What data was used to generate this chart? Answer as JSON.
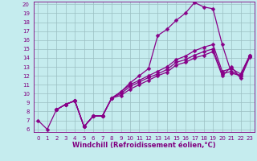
{
  "xlabel": "Windchill (Refroidissement éolien,°C)",
  "xlim": [
    -0.5,
    23.5
  ],
  "ylim": [
    5.7,
    20.3
  ],
  "xticks": [
    0,
    1,
    2,
    3,
    4,
    5,
    6,
    7,
    8,
    9,
    10,
    11,
    12,
    13,
    14,
    15,
    16,
    17,
    18,
    19,
    20,
    21,
    22,
    23
  ],
  "yticks": [
    6,
    7,
    8,
    9,
    10,
    11,
    12,
    13,
    14,
    15,
    16,
    17,
    18,
    19,
    20
  ],
  "bg_color": "#c5ecee",
  "grid_color": "#9bbfc2",
  "line_color": "#880088",
  "markersize": 2.5,
  "linewidth": 0.9,
  "line1_x": [
    0,
    1,
    2,
    3,
    4,
    5,
    6,
    7,
    8,
    9,
    10,
    11,
    12,
    13,
    14,
    15,
    16,
    17,
    18,
    19,
    20,
    21,
    22,
    23
  ],
  "line1_y": [
    7.0,
    6.0,
    8.2,
    8.8,
    9.2,
    6.3,
    7.5,
    7.5,
    9.5,
    10.2,
    11.2,
    12.0,
    12.8,
    16.5,
    17.2,
    18.2,
    19.0,
    20.2,
    19.7,
    19.5,
    15.5,
    12.3,
    12.0,
    14.3
  ],
  "line2_x": [
    2,
    3,
    4,
    5,
    6,
    7,
    8,
    9,
    10,
    11,
    12,
    13,
    14,
    15,
    16,
    17,
    18,
    19,
    20,
    21,
    22,
    23
  ],
  "line2_y": [
    8.2,
    8.8,
    9.2,
    6.3,
    7.5,
    7.5,
    9.5,
    10.2,
    11.0,
    11.5,
    12.0,
    12.5,
    13.0,
    13.8,
    14.2,
    14.8,
    15.2,
    15.5,
    12.5,
    12.8,
    12.2,
    14.3
  ],
  "line3_x": [
    2,
    3,
    4,
    5,
    6,
    7,
    8,
    9,
    10,
    11,
    12,
    13,
    14,
    15,
    16,
    17,
    18,
    19,
    20,
    21,
    22,
    23
  ],
  "line3_y": [
    8.2,
    8.8,
    9.2,
    6.3,
    7.5,
    7.5,
    9.5,
    10.0,
    10.8,
    11.3,
    11.8,
    12.2,
    12.7,
    13.5,
    13.8,
    14.3,
    14.7,
    15.0,
    12.2,
    12.5,
    12.0,
    14.2
  ],
  "line4_x": [
    2,
    3,
    4,
    5,
    6,
    7,
    8,
    9,
    10,
    11,
    12,
    13,
    14,
    15,
    16,
    17,
    18,
    19,
    20,
    21,
    22,
    23
  ],
  "line4_y": [
    8.2,
    8.8,
    9.2,
    6.3,
    7.5,
    7.5,
    9.5,
    9.8,
    10.5,
    11.0,
    11.5,
    12.0,
    12.4,
    13.2,
    13.5,
    14.0,
    14.3,
    14.7,
    12.0,
    13.0,
    11.7,
    14.1
  ],
  "font_color": "#800080",
  "tick_fontsize": 5.0,
  "label_fontsize": 6.0
}
